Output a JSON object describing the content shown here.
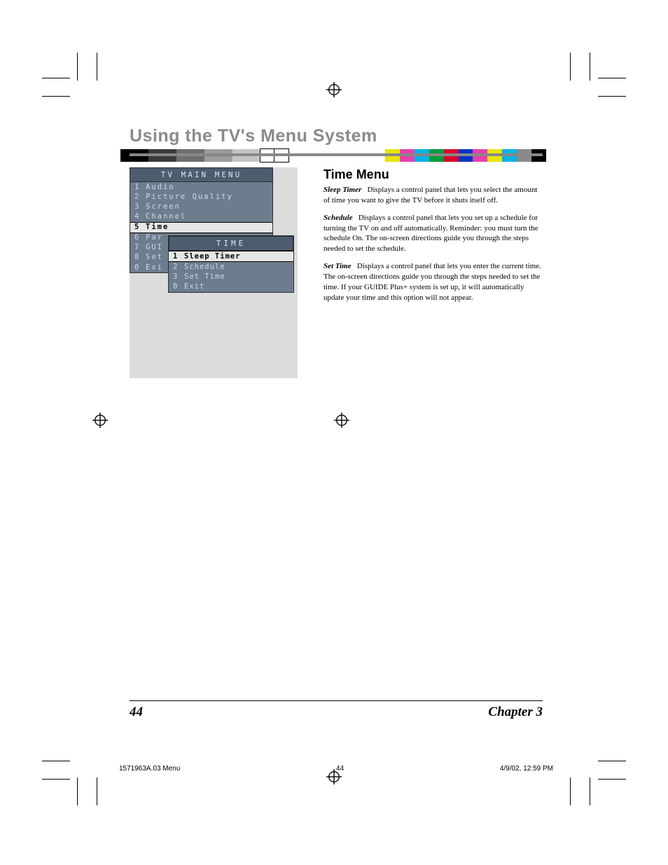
{
  "colorbar_left": [
    "#000000",
    "#000000",
    "#3a3a3a",
    "#3a3a3a",
    "#6f6f6f",
    "#6f6f6f",
    "#9c9c9c",
    "#9c9c9c",
    "#c4c4c4",
    "#c4c4c4",
    "#ffffff",
    "#ffffff"
  ],
  "colorbar_right": [
    "#e6e600",
    "#e63fb0",
    "#00b2e6",
    "#009a3a",
    "#d9002e",
    "#0033c7",
    "#e63fb0",
    "#e6e600",
    "#00b2e6",
    "#8a8a8a",
    "#000000"
  ],
  "page": {
    "chapter_title": "Using the TV's Menu System",
    "section_head": "Time Menu",
    "paragraphs": [
      {
        "term": "Sleep Timer",
        "body": "Displays a control panel that lets you select the amount of time you want to give the TV before it shuts itself off."
      },
      {
        "term": "Schedule",
        "body": "Displays a control panel that lets you set up a schedule for turning the TV on and off automatically. Reminder: you must turn the schedule On. The on-screen directions guide you through the steps needed to set the schedule."
      },
      {
        "term": "Set Time",
        "body": "Displays a control panel that lets you enter the current time. The on-screen directions guide you through the steps needed to set the time. If your GUIDE Plus+ system is set up, it will automatically update your time and this option will not appear."
      }
    ]
  },
  "tv_menu": {
    "main_title": "TV MAIN MENU",
    "main_items": [
      {
        "num": "1",
        "label": "Audio",
        "selected": false
      },
      {
        "num": "2",
        "label": "Picture Quality",
        "selected": false
      },
      {
        "num": "3",
        "label": "Screen",
        "selected": false
      },
      {
        "num": "4",
        "label": "Channel",
        "selected": false
      },
      {
        "num": "5",
        "label": "Time",
        "selected": true
      },
      {
        "num": "6",
        "label": "Par",
        "selected": false
      },
      {
        "num": "7",
        "label": "GUI",
        "selected": false
      },
      {
        "num": "8",
        "label": "Set",
        "selected": false
      },
      {
        "num": "0",
        "label": "Exi",
        "selected": false
      }
    ],
    "sub_title": "TIME",
    "sub_items": [
      {
        "num": "1",
        "label": "Sleep Timer",
        "selected": true
      },
      {
        "num": "2",
        "label": "Schedule",
        "selected": false
      },
      {
        "num": "3",
        "label": "Set Time",
        "selected": false
      },
      {
        "num": "0",
        "label": "Exit",
        "selected": false
      }
    ],
    "colors": {
      "figure_bg": "#dcdcdc",
      "panel_bg": "#6e7d8d",
      "titlebar_bg": "#4d5d6d",
      "titlebar_fg": "#d8e6f4",
      "row_fg": "#cdd9e6",
      "selected_bg": "#e6e6e6",
      "selected_fg": "#000000",
      "border": "#2a3038"
    }
  },
  "footer": {
    "page_number": "44",
    "chapter_ref": "Chapter 3"
  },
  "slug": {
    "file": "1571963A.03 Menu",
    "page": "44",
    "timestamp": "4/9/02, 12:59 PM"
  }
}
